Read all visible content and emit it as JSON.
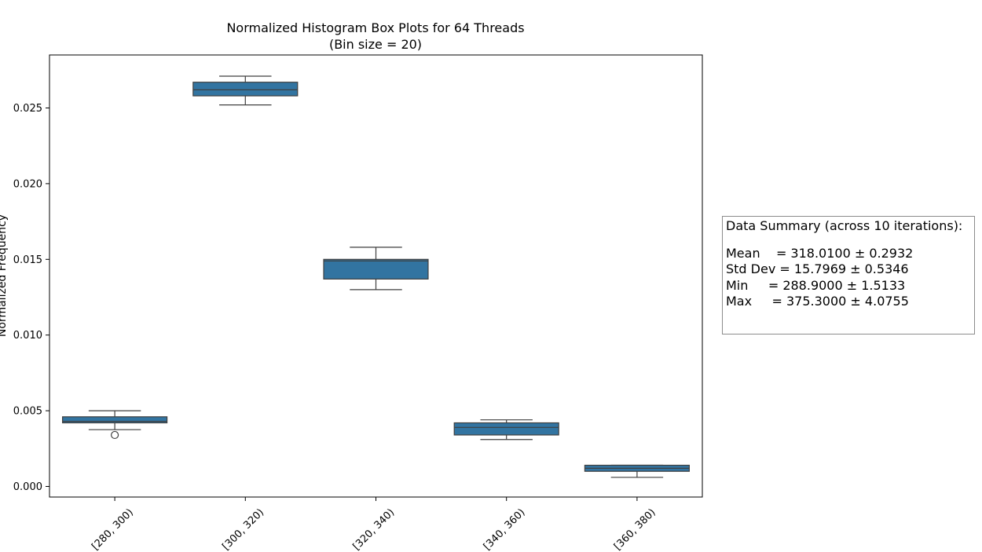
{
  "chart_data": {
    "type": "box",
    "title": "Normalized Histogram Box Plots for 64 Threads",
    "subtitle": "(Bin size = 20)",
    "ylabel": "Normalized Frequency",
    "xlabel": "",
    "ylim": [
      -0.0007,
      0.0285
    ],
    "yticks": [
      "0.000",
      "0.005",
      "0.010",
      "0.015",
      "0.020",
      "0.025"
    ],
    "ytick_values": [
      0.0,
      0.005,
      0.01,
      0.015,
      0.02,
      0.025
    ],
    "categories": [
      "[280, 300)",
      "[300, 320)",
      "[320, 340)",
      "[340, 360)",
      "[360, 380)"
    ],
    "boxes": [
      {
        "whisker_low": 0.00375,
        "q1": 0.0042,
        "median": 0.0043,
        "q3": 0.0046,
        "whisker_high": 0.005,
        "outliers": [
          0.0034
        ]
      },
      {
        "whisker_low": 0.0252,
        "q1": 0.0258,
        "median": 0.0262,
        "q3": 0.0267,
        "whisker_high": 0.0271,
        "outliers": []
      },
      {
        "whisker_low": 0.013,
        "q1": 0.0137,
        "median": 0.0149,
        "q3": 0.015,
        "whisker_high": 0.0158,
        "outliers": []
      },
      {
        "whisker_low": 0.0031,
        "q1": 0.0034,
        "median": 0.0039,
        "q3": 0.0042,
        "whisker_high": 0.0044,
        "outliers": []
      },
      {
        "whisker_low": 0.0006,
        "q1": 0.001,
        "median": 0.0012,
        "q3": 0.0014,
        "whisker_high": 0.0014,
        "outliers": []
      }
    ],
    "box_color": "#3274a1",
    "line_color": "#3f3f3f",
    "grid": false
  },
  "summary": {
    "heading": "Data Summary (across 10 iterations):",
    "mean": "Mean    = 318.0100 ± 0.2932",
    "std": "Std Dev = 15.7969 ± 0.5346",
    "min": "Min     = 288.9000 ± 1.5133",
    "max": "Max     = 375.3000 ± 4.0755"
  }
}
